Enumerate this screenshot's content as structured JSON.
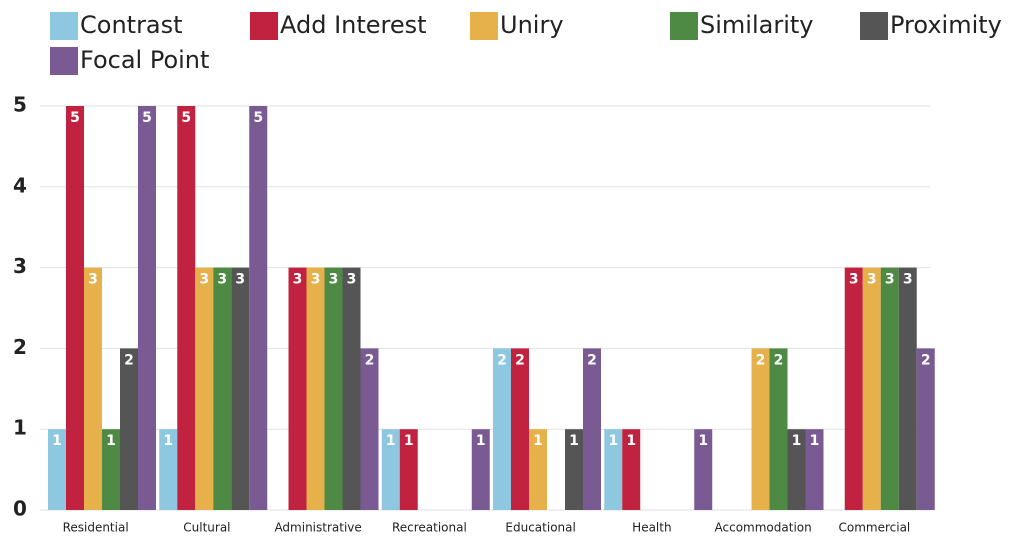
{
  "chart_data": {
    "type": "bar",
    "categories": [
      "Residential",
      "Cultural",
      "Administrative",
      "Recreational",
      "Educational",
      "Health",
      "Accommodation",
      "Commercial"
    ],
    "series": [
      {
        "name": "Contrast",
        "color": "#8ec8e0",
        "values": [
          1,
          1,
          null,
          1,
          2,
          1,
          null,
          null
        ]
      },
      {
        "name": "Add Interest",
        "color": "#c0223f",
        "values": [
          5,
          5,
          3,
          1,
          2,
          1,
          null,
          3
        ]
      },
      {
        "name": "Uniry",
        "color": "#e6b04a",
        "values": [
          3,
          3,
          3,
          null,
          1,
          null,
          2,
          3
        ]
      },
      {
        "name": "Similarity",
        "color": "#4f8a44",
        "values": [
          1,
          3,
          3,
          null,
          null,
          null,
          2,
          3
        ]
      },
      {
        "name": "Proximity",
        "color": "#555555",
        "values": [
          2,
          3,
          3,
          null,
          1,
          null,
          1,
          3
        ]
      },
      {
        "name": "Focal Point",
        "color": "#7a5a93",
        "values": [
          5,
          5,
          2,
          1,
          2,
          1,
          1,
          2
        ]
      }
    ],
    "ylim": [
      0,
      5
    ],
    "yticks": [
      0,
      1,
      2,
      3,
      4,
      5
    ],
    "grid": true
  }
}
